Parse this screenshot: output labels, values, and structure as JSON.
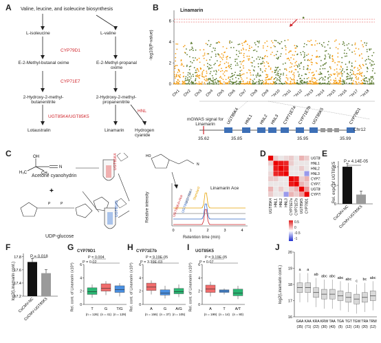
{
  "panel_labels": [
    "A",
    "B",
    "C",
    "D",
    "E",
    "F",
    "G",
    "H",
    "I",
    "J"
  ],
  "A": {
    "top": "Valine, leucine, and isoleucine biosynthesis",
    "left_compounds": [
      "L-isoleucine",
      "E-2-Methyl-butanal oxime",
      "2-Hydroxy-2-methyl-butanenitrile",
      "Lotaustralin"
    ],
    "right_compounds": [
      "L-valine",
      "E-2-Methyl-propanal oxime",
      "2-Hydroxy-2-methyl-propanenitrile",
      "Linamarin",
      "Hydrogen cyanide"
    ],
    "enzymes": [
      "CYP79D1",
      "CYP71E7",
      "UGT85K4/UGT85K5",
      "HNL"
    ]
  },
  "B": {
    "peak_label": "Linamarin",
    "ylabel": "-log10(P-value)",
    "yticks": [
      "0",
      "2",
      "4",
      "6"
    ],
    "chromosomes": [
      "Chr1",
      "Chr2",
      "Chr3",
      "Chr4",
      "Chr5",
      "Chr6",
      "Chr7",
      "Chr8",
      "Chr9",
      "Chr10",
      "Chr11",
      "Chr12",
      "Chr13",
      "Chr14",
      "Chr15",
      "Chr16",
      "Chr17",
      "Chr18"
    ],
    "colors": {
      "odd": "#f39c12",
      "even": "#5a7a2e",
      "threshold": "#e03a3a"
    },
    "signal_label": "mGWAS signal for Linamarin",
    "genes": [
      "UGT85K4",
      "HNL1",
      "HNL2",
      "HNL3",
      "CYP71E7a",
      "CYP71E7b",
      "UGT85K5",
      "CYP79D1"
    ],
    "positions": [
      "35.62",
      "35.85",
      "35.95",
      "35.99"
    ],
    "chr_label": "Chr12"
  },
  "C": {
    "reagent1": "Acetone cyanohydrin",
    "reagent2": "UDP-glucose",
    "tube1": "UGT85K4",
    "tube2": "UGT85K5",
    "trace_labels": [
      "UGT85K5+Ace",
      "UGT85K4+Ace",
      "UGT85K4",
      "Standard"
    ],
    "product": "Linamarin Ace",
    "xlabel": "Retention time (min)",
    "ylabel": "Relative intensity",
    "xticks": [
      "0",
      "1",
      "2",
      "3",
      "4"
    ]
  },
  "D": {
    "genes": [
      "UGT85K4",
      "HNL1",
      "HNL2",
      "HNL3",
      "CYP71E7a",
      "CYP71E7b",
      "UGT85K5",
      "CYP79D1"
    ],
    "scale": [
      "0.5",
      "0",
      "-0.5",
      "-1"
    ]
  },
  "E": {
    "ylabel": "Rel. expr. of UGT85K5",
    "p": "P = 4.14E-05",
    "categories": [
      "CsCMV-NC",
      "CsCMV-UGT85K5"
    ],
    "values": [
      1.0,
      0.25
    ],
    "yticks": [
      "0",
      "0.5",
      "1"
    ]
  },
  "F": {
    "ylabel": "log2(Linamarin cont.)",
    "p": "P = 0.018",
    "categories": [
      "CsCMV-NC",
      "CsCMV-UGT85K5"
    ],
    "values": [
      17.72,
      17.55
    ],
    "yticks": [
      "17.2",
      "17.4",
      "17.6",
      "17.8"
    ]
  },
  "G": {
    "title": "CYP79D1",
    "p1": "P = 0.004",
    "p2": "P = 0.02",
    "groups": [
      "T",
      "G",
      "T/G"
    ],
    "ns": [
      "(n = 126)",
      "(n = 41)",
      "(n = 129)"
    ],
    "colors": [
      "#2bb673",
      "#f06c6c",
      "#4a90e2"
    ],
    "ylabel": "Rel. cont. of Linamarin (x10⁶)",
    "yticks": [
      "0",
      "2",
      "4",
      "6"
    ]
  },
  "H": {
    "title": "CYP71E7b",
    "p1": "P = 9.19E-05",
    "p2": "P = 3.39E-03",
    "groups": [
      "A",
      "G",
      "A/G"
    ],
    "ns": [
      "(n = 156)",
      "(n = 37)",
      "(n = 105)"
    ],
    "colors": [
      "#f06c6c",
      "#4a90e2",
      "#2bb673"
    ],
    "ylabel": "Rel. cont. of Linamarin (x10⁶)",
    "yticks": [
      "0",
      "2",
      "4",
      "6"
    ]
  },
  "I": {
    "title": "UGT85K5",
    "p1": "P = 9.19E-05",
    "p2": "P = 0.07",
    "groups": [
      "A",
      "T",
      "A/T"
    ],
    "ns": [
      "(n = 199)",
      "(n = 14)",
      "(n = 80)"
    ],
    "colors": [
      "#f06c6c",
      "#4a90e2",
      "#2bb673"
    ],
    "ylabel": "Rel. cont. of Linamarin (x10⁶)",
    "yticks": [
      "0",
      "2",
      "4",
      "6"
    ]
  },
  "J": {
    "ylabel": "log2(Linamarin cont.)",
    "yticks": [
      "16",
      "17",
      "18",
      "19",
      "20"
    ],
    "letters": [
      "a",
      "a",
      "ab",
      "abc",
      "abc",
      "abc",
      "abc",
      "c",
      "bc",
      "abc"
    ],
    "groups": [
      "GAA",
      "KAA",
      "KRA",
      "KRW",
      "TAA",
      "TGA",
      "TGT",
      "TGW",
      "TRA",
      "TRW"
    ],
    "ns": [
      "(35)",
      "(71)",
      "(22)",
      "(30)",
      "(43)",
      "(5)",
      "(12)",
      "(16)",
      "(20)",
      "(12)"
    ]
  }
}
